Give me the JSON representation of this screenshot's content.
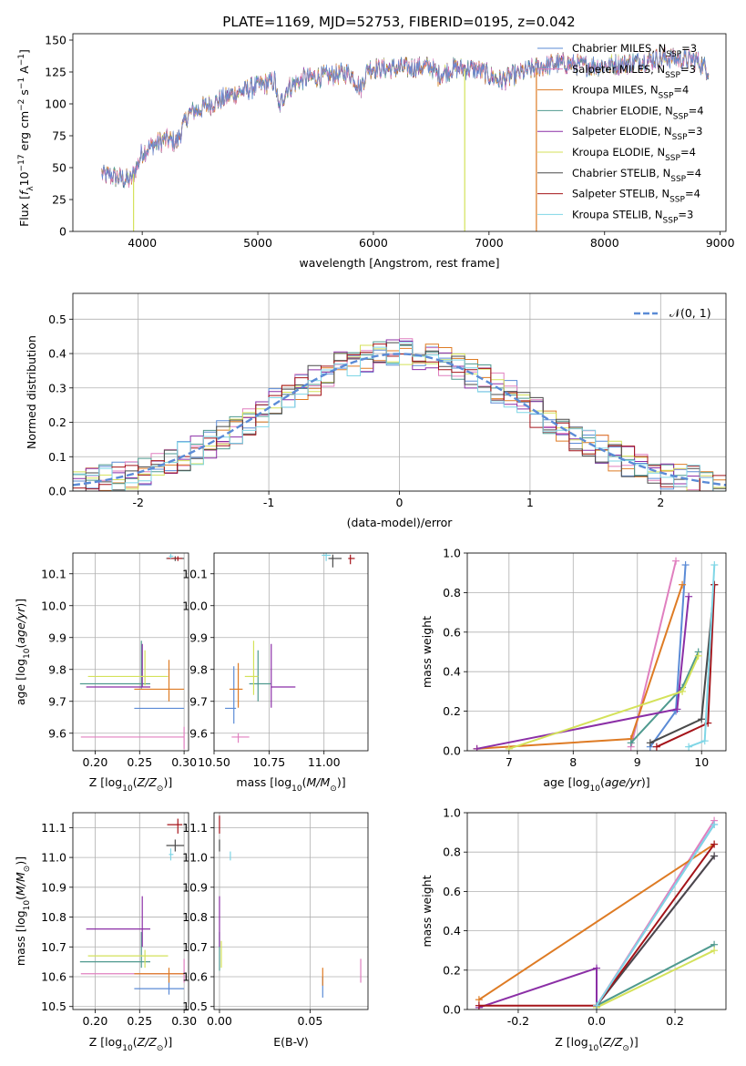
{
  "title": "PLATE=1169, MJD=52753, FIBERID=0195, z=0.042",
  "models": [
    {
      "name": "Chabrier MILES",
      "nssp": "3",
      "color": "#5b8bd6"
    },
    {
      "name": "Salpeter MILES",
      "nssp": "3",
      "color": "#e07fbf"
    },
    {
      "name": "Kroupa MILES",
      "nssp": "4",
      "color": "#de7b24"
    },
    {
      "name": "Chabrier ELODIE",
      "nssp": "4",
      "color": "#4f9a8f"
    },
    {
      "name": "Salpeter ELODIE",
      "nssp": "3",
      "color": "#8b2fa6"
    },
    {
      "name": "Kroupa ELODIE",
      "nssp": "4",
      "color": "#d4e25a"
    },
    {
      "name": "Chabrier STELIB",
      "nssp": "4",
      "color": "#4a4a4a"
    },
    {
      "name": "Salpeter STELIB",
      "nssp": "4",
      "color": "#a5141a"
    },
    {
      "name": "Kroupa STELIB",
      "nssp": "3",
      "color": "#7fd6e6"
    }
  ],
  "chart_data": [
    {
      "id": "spectrum",
      "type": "line",
      "xlabel": "wavelength [Angstrom, rest frame]",
      "ylabel": "Flux [f_λ10^-17 erg cm^-2 s^-1 A^-1]",
      "xlim": [
        3400,
        9050
      ],
      "ylim": [
        0,
        155
      ],
      "xticks": [
        4000,
        5000,
        6000,
        7000,
        8000,
        9000
      ],
      "yticks": [
        0,
        25,
        50,
        75,
        100,
        125,
        150
      ],
      "continuum": [
        [
          3650,
          45
        ],
        [
          3800,
          42
        ],
        [
          3900,
          40
        ],
        [
          3950,
          50
        ],
        [
          4000,
          62
        ],
        [
          4100,
          68
        ],
        [
          4200,
          72
        ],
        [
          4300,
          70
        ],
        [
          4400,
          92
        ],
        [
          4600,
          100
        ],
        [
          4800,
          108
        ],
        [
          5000,
          114
        ],
        [
          5150,
          118
        ],
        [
          5180,
          96
        ],
        [
          5250,
          112
        ],
        [
          5400,
          120
        ],
        [
          5600,
          122
        ],
        [
          5800,
          124
        ],
        [
          5890,
          112
        ],
        [
          5950,
          128
        ],
        [
          6200,
          128
        ],
        [
          6500,
          129
        ],
        [
          6560,
          122
        ],
        [
          6700,
          128
        ],
        [
          6900,
          127
        ],
        [
          7100,
          118
        ],
        [
          7200,
          122
        ],
        [
          7400,
          128
        ],
        [
          7600,
          132
        ],
        [
          7800,
          130
        ],
        [
          8000,
          130
        ],
        [
          8200,
          132
        ],
        [
          8500,
          136
        ],
        [
          8800,
          134
        ],
        [
          8900,
          126
        ]
      ],
      "drops": [
        {
          "model": 5,
          "x": 3925
        },
        {
          "model": 5,
          "x": 6790
        },
        {
          "model": 2,
          "x": 7410
        }
      ],
      "legend_position": "top-right"
    },
    {
      "id": "residual-histogram",
      "type": "histogram",
      "xlabel": "(data-model)/error",
      "ylabel": "Normed distribution",
      "xlim": [
        -2.5,
        2.5
      ],
      "ylim": [
        0,
        0.575
      ],
      "xticks": [
        -2,
        -1,
        0,
        1,
        2
      ],
      "yticks": [
        0.0,
        0.1,
        0.2,
        0.3,
        0.4,
        0.5
      ],
      "bin_width": 0.1,
      "reference_curve": {
        "label": "𝒩(0, 1)",
        "mean": 0,
        "sigma": 1,
        "color": "#5b8bd6"
      },
      "legend_position": "top-right"
    },
    {
      "id": "age-vs-metallicity",
      "type": "errorbar",
      "xlabel": "Z [log10(Z/Z⊙)]",
      "ylabel": "age [log10(age/yr)]",
      "xlim": [
        0.175,
        0.305
      ],
      "ylim": [
        9.545,
        10.165
      ],
      "xticks": [
        0.2,
        0.25,
        0.3
      ],
      "yticks": [
        9.6,
        9.7,
        9.8,
        9.9,
        10.0,
        10.1
      ],
      "points": [
        {
          "model": 0,
          "x": 0.283,
          "y": 9.678,
          "xerr": [
            0.244,
            0.3
          ],
          "yerr": [
            9.678,
            9.678
          ]
        },
        {
          "model": 1,
          "x": 0.3,
          "y": 9.588,
          "xerr": [
            0.184,
            0.3
          ],
          "yerr": [
            9.55,
            9.62
          ]
        },
        {
          "model": 2,
          "x": 0.283,
          "y": 9.738,
          "xerr": [
            0.244,
            0.3
          ],
          "yerr": [
            9.7,
            9.83
          ]
        },
        {
          "model": 3,
          "x": 0.252,
          "y": 9.755,
          "xerr": [
            0.183,
            0.262
          ],
          "yerr": [
            9.74,
            9.89
          ]
        },
        {
          "model": 4,
          "x": 0.253,
          "y": 9.745,
          "xerr": [
            0.19,
            0.262
          ],
          "yerr": [
            9.745,
            9.88
          ]
        },
        {
          "model": 5,
          "x": 0.256,
          "y": 9.778,
          "xerr": [
            0.192,
            0.282
          ],
          "yerr": [
            9.75,
            9.86
          ]
        },
        {
          "model": 6,
          "x": 0.29,
          "y": 10.148,
          "xerr": [
            0.28,
            0.3
          ],
          "yerr": [
            10.14,
            10.155
          ]
        },
        {
          "model": 7,
          "x": 0.293,
          "y": 10.148,
          "xerr": [
            0.281,
            0.298
          ],
          "yerr": [
            10.14,
            10.155
          ]
        },
        {
          "model": 8,
          "x": 0.285,
          "y": 10.155,
          "xerr": [
            0.283,
            0.288
          ],
          "yerr": [
            10.148,
            10.162
          ]
        }
      ]
    },
    {
      "id": "age-vs-mass",
      "type": "errorbar",
      "xlabel": "mass [log10(M/M⊙)]",
      "ylabel": "",
      "xlim": [
        10.5,
        11.2
      ],
      "ylim": [
        9.545,
        10.165
      ],
      "xticks": [
        10.5,
        10.75,
        11.0
      ],
      "yticks": [
        9.6,
        9.7,
        9.8,
        9.9,
        10.0,
        10.1
      ],
      "points": [
        {
          "model": 0,
          "x": 10.59,
          "y": 9.678,
          "xerr": [
            10.55,
            10.6
          ],
          "yerr": [
            9.63,
            9.81
          ]
        },
        {
          "model": 1,
          "x": 10.61,
          "y": 9.588,
          "xerr": [
            10.58,
            10.66
          ],
          "yerr": [
            9.57,
            9.6
          ]
        },
        {
          "model": 2,
          "x": 10.61,
          "y": 9.738,
          "xerr": [
            10.57,
            10.63
          ],
          "yerr": [
            9.68,
            9.82
          ]
        },
        {
          "model": 3,
          "x": 10.7,
          "y": 9.755,
          "xerr": [
            10.66,
            10.76
          ],
          "yerr": [
            9.7,
            9.86
          ]
        },
        {
          "model": 4,
          "x": 10.76,
          "y": 9.745,
          "xerr": [
            10.76,
            10.87
          ],
          "yerr": [
            9.68,
            9.88
          ]
        },
        {
          "model": 5,
          "x": 10.68,
          "y": 9.778,
          "xerr": [
            10.64,
            10.7
          ],
          "yerr": [
            9.72,
            9.89
          ]
        },
        {
          "model": 6,
          "x": 11.04,
          "y": 10.148,
          "xerr": [
            11.02,
            11.08
          ],
          "yerr": [
            10.12,
            10.16
          ]
        },
        {
          "model": 7,
          "x": 11.12,
          "y": 10.148,
          "xerr": [
            11.11,
            11.14
          ],
          "yerr": [
            10.13,
            10.16
          ]
        },
        {
          "model": 8,
          "x": 11.01,
          "y": 10.158,
          "xerr": [
            10.99,
            11.03
          ],
          "yerr": [
            10.14,
            10.165
          ]
        }
      ]
    },
    {
      "id": "mass-weight-vs-age",
      "type": "line",
      "xlabel": "age [log10(age/yr)]",
      "ylabel": "mass weight",
      "xlim": [
        6.35,
        10.38
      ],
      "ylim": [
        0,
        1.0
      ],
      "xticks": [
        7,
        8,
        9,
        10
      ],
      "yticks": [
        0.0,
        0.2,
        0.4,
        0.6,
        0.8,
        1.0
      ],
      "series": [
        {
          "model": 0,
          "points": [
            [
              9.2,
              0.02
            ],
            [
              9.6,
              0.2
            ],
            [
              9.75,
              0.94
            ]
          ]
        },
        {
          "model": 1,
          "points": [
            [
              8.9,
              0.02
            ],
            [
              9.6,
              0.96
            ]
          ]
        },
        {
          "model": 2,
          "points": [
            [
              6.5,
              0.01
            ],
            [
              8.9,
              0.06
            ],
            [
              9.7,
              0.84
            ]
          ]
        },
        {
          "model": 3,
          "points": [
            [
              8.9,
              0.04
            ],
            [
              9.7,
              0.32
            ],
            [
              9.95,
              0.5
            ]
          ]
        },
        {
          "model": 4,
          "points": [
            [
              6.5,
              0.01
            ],
            [
              9.62,
              0.21
            ],
            [
              9.8,
              0.78
            ]
          ]
        },
        {
          "model": 5,
          "points": [
            [
              7.0,
              0.01
            ],
            [
              9.7,
              0.3
            ],
            [
              9.95,
              0.48
            ]
          ]
        },
        {
          "model": 6,
          "points": [
            [
              9.2,
              0.04
            ],
            [
              10.0,
              0.16
            ],
            [
              10.2,
              0.84
            ]
          ]
        },
        {
          "model": 7,
          "points": [
            [
              9.3,
              0.02
            ],
            [
              10.1,
              0.14
            ],
            [
              10.2,
              0.84
            ]
          ]
        },
        {
          "model": 8,
          "points": [
            [
              9.8,
              0.02
            ],
            [
              10.05,
              0.05
            ],
            [
              10.2,
              0.94
            ]
          ]
        }
      ]
    },
    {
      "id": "mass-vs-metallicity",
      "type": "errorbar",
      "xlabel": "Z [log10(Z/Z⊙)]",
      "ylabel": "mass [log10(M/M⊙)]",
      "xlim": [
        0.175,
        0.305
      ],
      "ylim": [
        10.49,
        11.15
      ],
      "xticks": [
        0.2,
        0.25,
        0.3
      ],
      "yticks": [
        10.5,
        10.6,
        10.7,
        10.8,
        10.9,
        11.0,
        11.1
      ],
      "points": [
        {
          "model": 0,
          "x": 0.283,
          "y": 10.56,
          "xerr": [
            0.244,
            0.3
          ],
          "yerr": [
            10.54,
            10.6
          ]
        },
        {
          "model": 1,
          "x": 0.3,
          "y": 10.61,
          "xerr": [
            0.184,
            0.3
          ],
          "yerr": [
            10.58,
            10.66
          ]
        },
        {
          "model": 2,
          "x": 0.283,
          "y": 10.61,
          "xerr": [
            0.244,
            0.3
          ],
          "yerr": [
            10.58,
            10.63
          ]
        },
        {
          "model": 3,
          "x": 0.252,
          "y": 10.65,
          "xerr": [
            0.183,
            0.262
          ],
          "yerr": [
            10.63,
            10.75
          ]
        },
        {
          "model": 4,
          "x": 0.253,
          "y": 10.76,
          "xerr": [
            0.19,
            0.262
          ],
          "yerr": [
            10.7,
            10.87
          ]
        },
        {
          "model": 5,
          "x": 0.256,
          "y": 10.67,
          "xerr": [
            0.192,
            0.282
          ],
          "yerr": [
            10.63,
            10.69
          ]
        },
        {
          "model": 6,
          "x": 0.29,
          "y": 11.04,
          "xerr": [
            0.28,
            0.3
          ],
          "yerr": [
            11.02,
            11.06
          ]
        },
        {
          "model": 7,
          "x": 0.293,
          "y": 11.11,
          "xerr": [
            0.281,
            0.298
          ],
          "yerr": [
            11.08,
            11.13
          ]
        },
        {
          "model": 8,
          "x": 0.285,
          "y": 11.01,
          "xerr": [
            0.283,
            0.288
          ],
          "yerr": [
            10.99,
            11.03
          ]
        }
      ]
    },
    {
      "id": "mass-vs-ebv",
      "type": "errorbar",
      "xlabel": "E(B-V)",
      "ylabel": "",
      "xlim": [
        -0.003,
        0.082
      ],
      "ylim": [
        10.49,
        11.15
      ],
      "xticks": [
        0.0,
        0.05
      ],
      "yticks": [
        10.5,
        10.6,
        10.7,
        10.8,
        10.9,
        11.0,
        11.1
      ],
      "points": [
        {
          "model": 0,
          "x": 0.057,
          "y": 10.56,
          "yerr": [
            10.53,
            10.6
          ]
        },
        {
          "model": 1,
          "x": 0.078,
          "y": 10.61,
          "yerr": [
            10.58,
            10.66
          ]
        },
        {
          "model": 2,
          "x": 0.057,
          "y": 10.61,
          "yerr": [
            10.57,
            10.63
          ]
        },
        {
          "model": 3,
          "x": 0.0,
          "y": 10.65,
          "yerr": [
            10.62,
            10.75
          ]
        },
        {
          "model": 4,
          "x": 0.0,
          "y": 10.76,
          "yerr": [
            10.7,
            10.87
          ]
        },
        {
          "model": 5,
          "x": 0.001,
          "y": 10.67,
          "yerr": [
            10.63,
            10.72
          ]
        },
        {
          "model": 6,
          "x": 0.0,
          "y": 11.04,
          "yerr": [
            11.02,
            11.06
          ]
        },
        {
          "model": 7,
          "x": 0.0,
          "y": 11.11,
          "yerr": [
            11.08,
            11.14
          ]
        },
        {
          "model": 8,
          "x": 0.006,
          "y": 11.01,
          "yerr": [
            10.99,
            11.02
          ]
        }
      ]
    },
    {
      "id": "mass-weight-vs-metallicity",
      "type": "line",
      "xlabel": "Z [log10(Z/Z⊙)]",
      "ylabel": "mass weight",
      "xlim": [
        -0.33,
        0.33
      ],
      "ylim": [
        0,
        1.0
      ],
      "xticks": [
        -0.2,
        0.0,
        0.2
      ],
      "yticks": [
        0.0,
        0.2,
        0.4,
        0.6,
        0.8,
        1.0
      ],
      "series": [
        {
          "model": 0,
          "points": [
            [
              0.0,
              0.02
            ],
            [
              0.3,
              0.94
            ]
          ]
        },
        {
          "model": 1,
          "points": [
            [
              0.0,
              0.02
            ],
            [
              0.3,
              0.96
            ]
          ]
        },
        {
          "model": 2,
          "points": [
            [
              -0.3,
              0.05
            ],
            [
              0.3,
              0.84
            ]
          ]
        },
        {
          "model": 3,
          "points": [
            [
              0.0,
              0.02
            ],
            [
              0.3,
              0.33
            ]
          ]
        },
        {
          "model": 4,
          "points": [
            [
              -0.3,
              0.01
            ],
            [
              0.0,
              0.21
            ],
            [
              0.0,
              0.02
            ],
            [
              0.3,
              0.78
            ]
          ]
        },
        {
          "model": 5,
          "points": [
            [
              0.0,
              0.01
            ],
            [
              0.3,
              0.3
            ]
          ]
        },
        {
          "model": 6,
          "points": [
            [
              0.0,
              0.02
            ],
            [
              0.3,
              0.78
            ]
          ]
        },
        {
          "model": 7,
          "points": [
            [
              -0.3,
              0.02
            ],
            [
              0.0,
              0.02
            ],
            [
              0.3,
              0.84
            ]
          ]
        },
        {
          "model": 8,
          "points": [
            [
              0.0,
              0.02
            ],
            [
              0.3,
              0.94
            ]
          ]
        }
      ]
    }
  ]
}
